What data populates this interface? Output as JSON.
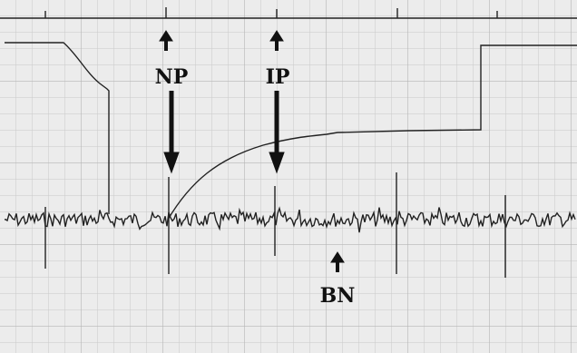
{
  "labels": {
    "np": "NP",
    "ip": "IP",
    "bn": "BN"
  }
}
